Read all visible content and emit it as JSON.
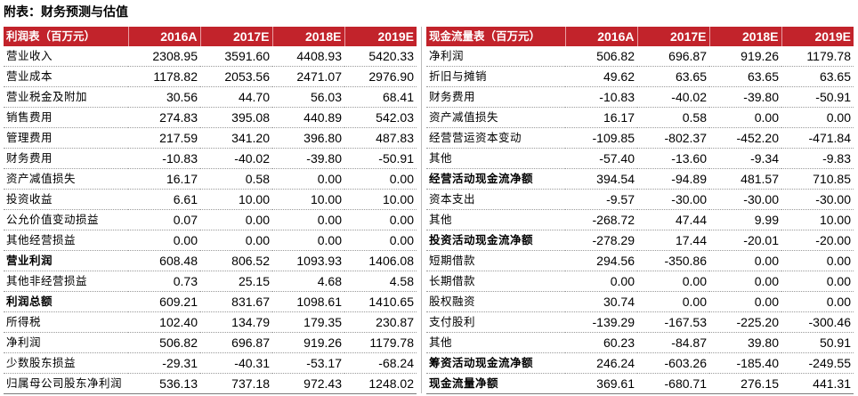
{
  "title": "附表：财务预测与估值",
  "income": {
    "header": [
      "利润表（百万元）",
      "2016A",
      "2017E",
      "2018E",
      "2019E"
    ],
    "rows": [
      {
        "label": "营业收入",
        "values": [
          "2308.95",
          "3591.60",
          "4408.93",
          "5420.33"
        ],
        "bold": false
      },
      {
        "label": "营业成本",
        "values": [
          "1178.82",
          "2053.56",
          "2471.07",
          "2976.90"
        ],
        "bold": false
      },
      {
        "label": "营业税金及附加",
        "values": [
          "30.56",
          "44.70",
          "56.03",
          "68.41"
        ],
        "bold": false
      },
      {
        "label": "销售费用",
        "values": [
          "274.83",
          "395.08",
          "440.89",
          "542.03"
        ],
        "bold": false
      },
      {
        "label": "管理费用",
        "values": [
          "217.59",
          "341.20",
          "396.80",
          "487.83"
        ],
        "bold": false
      },
      {
        "label": "财务费用",
        "values": [
          "-10.83",
          "-40.02",
          "-39.80",
          "-50.91"
        ],
        "bold": false
      },
      {
        "label": "资产减值损失",
        "values": [
          "16.17",
          "0.58",
          "0.00",
          "0.00"
        ],
        "bold": false
      },
      {
        "label": "投资收益",
        "values": [
          "6.61",
          "10.00",
          "10.00",
          "10.00"
        ],
        "bold": false
      },
      {
        "label": "公允价值变动损益",
        "values": [
          "0.07",
          "0.00",
          "0.00",
          "0.00"
        ],
        "bold": false
      },
      {
        "label": "其他经营损益",
        "values": [
          "0.00",
          "0.00",
          "0.00",
          "0.00"
        ],
        "bold": false
      },
      {
        "label": "营业利润",
        "values": [
          "608.48",
          "806.52",
          "1093.93",
          "1406.08"
        ],
        "bold": true
      },
      {
        "label": "其他非经营损益",
        "values": [
          "0.73",
          "25.15",
          "4.68",
          "4.58"
        ],
        "bold": false
      },
      {
        "label": "利润总额",
        "values": [
          "609.21",
          "831.67",
          "1098.61",
          "1410.65"
        ],
        "bold": true
      },
      {
        "label": "所得税",
        "values": [
          "102.40",
          "134.79",
          "179.35",
          "230.87"
        ],
        "bold": false
      },
      {
        "label": "净利润",
        "values": [
          "506.82",
          "696.87",
          "919.26",
          "1179.78"
        ],
        "bold": false
      },
      {
        "label": "少数股东损益",
        "values": [
          "-29.31",
          "-40.31",
          "-53.17",
          "-68.24"
        ],
        "bold": false
      },
      {
        "label": "归属母公司股东净利润",
        "values": [
          "536.13",
          "737.18",
          "972.43",
          "1248.02"
        ],
        "bold": false
      }
    ]
  },
  "cashflow": {
    "header": [
      "现金流量表（百万元）",
      "2016A",
      "2017E",
      "2018E",
      "2019E"
    ],
    "rows": [
      {
        "label": "净利润",
        "values": [
          "506.82",
          "696.87",
          "919.26",
          "1179.78"
        ],
        "bold": false
      },
      {
        "label": "折旧与摊销",
        "values": [
          "49.62",
          "63.65",
          "63.65",
          "63.65"
        ],
        "bold": false
      },
      {
        "label": "财务费用",
        "values": [
          "-10.83",
          "-40.02",
          "-39.80",
          "-50.91"
        ],
        "bold": false
      },
      {
        "label": "资产减值损失",
        "values": [
          "16.17",
          "0.58",
          "0.00",
          "0.00"
        ],
        "bold": false
      },
      {
        "label": "经营营运资本变动",
        "values": [
          "-109.85",
          "-802.37",
          "-452.20",
          "-471.84"
        ],
        "bold": false
      },
      {
        "label": "其他",
        "values": [
          "-57.40",
          "-13.60",
          "-9.34",
          "-9.83"
        ],
        "bold": false
      },
      {
        "label": "经营活动现金流净额",
        "values": [
          "394.54",
          "-94.89",
          "481.57",
          "710.85"
        ],
        "bold": true
      },
      {
        "label": "资本支出",
        "values": [
          "-9.57",
          "-30.00",
          "-30.00",
          "-30.00"
        ],
        "bold": false
      },
      {
        "label": "其他",
        "values": [
          "-268.72",
          "47.44",
          "9.99",
          "10.00"
        ],
        "bold": false
      },
      {
        "label": "投资活动现金流净额",
        "values": [
          "-278.29",
          "17.44",
          "-20.01",
          "-20.00"
        ],
        "bold": true
      },
      {
        "label": "短期借款",
        "values": [
          "294.56",
          "-350.86",
          "0.00",
          "0.00"
        ],
        "bold": false
      },
      {
        "label": "长期借款",
        "values": [
          "0.00",
          "0.00",
          "0.00",
          "0.00"
        ],
        "bold": false
      },
      {
        "label": "股权融资",
        "values": [
          "30.74",
          "0.00",
          "0.00",
          "0.00"
        ],
        "bold": false
      },
      {
        "label": "支付股利",
        "values": [
          "-139.29",
          "-167.53",
          "-225.20",
          "-300.46"
        ],
        "bold": false
      },
      {
        "label": "其他",
        "values": [
          "60.23",
          "-84.87",
          "39.80",
          "50.91"
        ],
        "bold": false
      },
      {
        "label": "筹资活动现金流净额",
        "values": [
          "246.24",
          "-603.26",
          "-185.40",
          "-249.55"
        ],
        "bold": true
      },
      {
        "label": "现金流量净额",
        "values": [
          "369.61",
          "-680.71",
          "276.15",
          "441.31"
        ],
        "bold": true
      }
    ]
  }
}
